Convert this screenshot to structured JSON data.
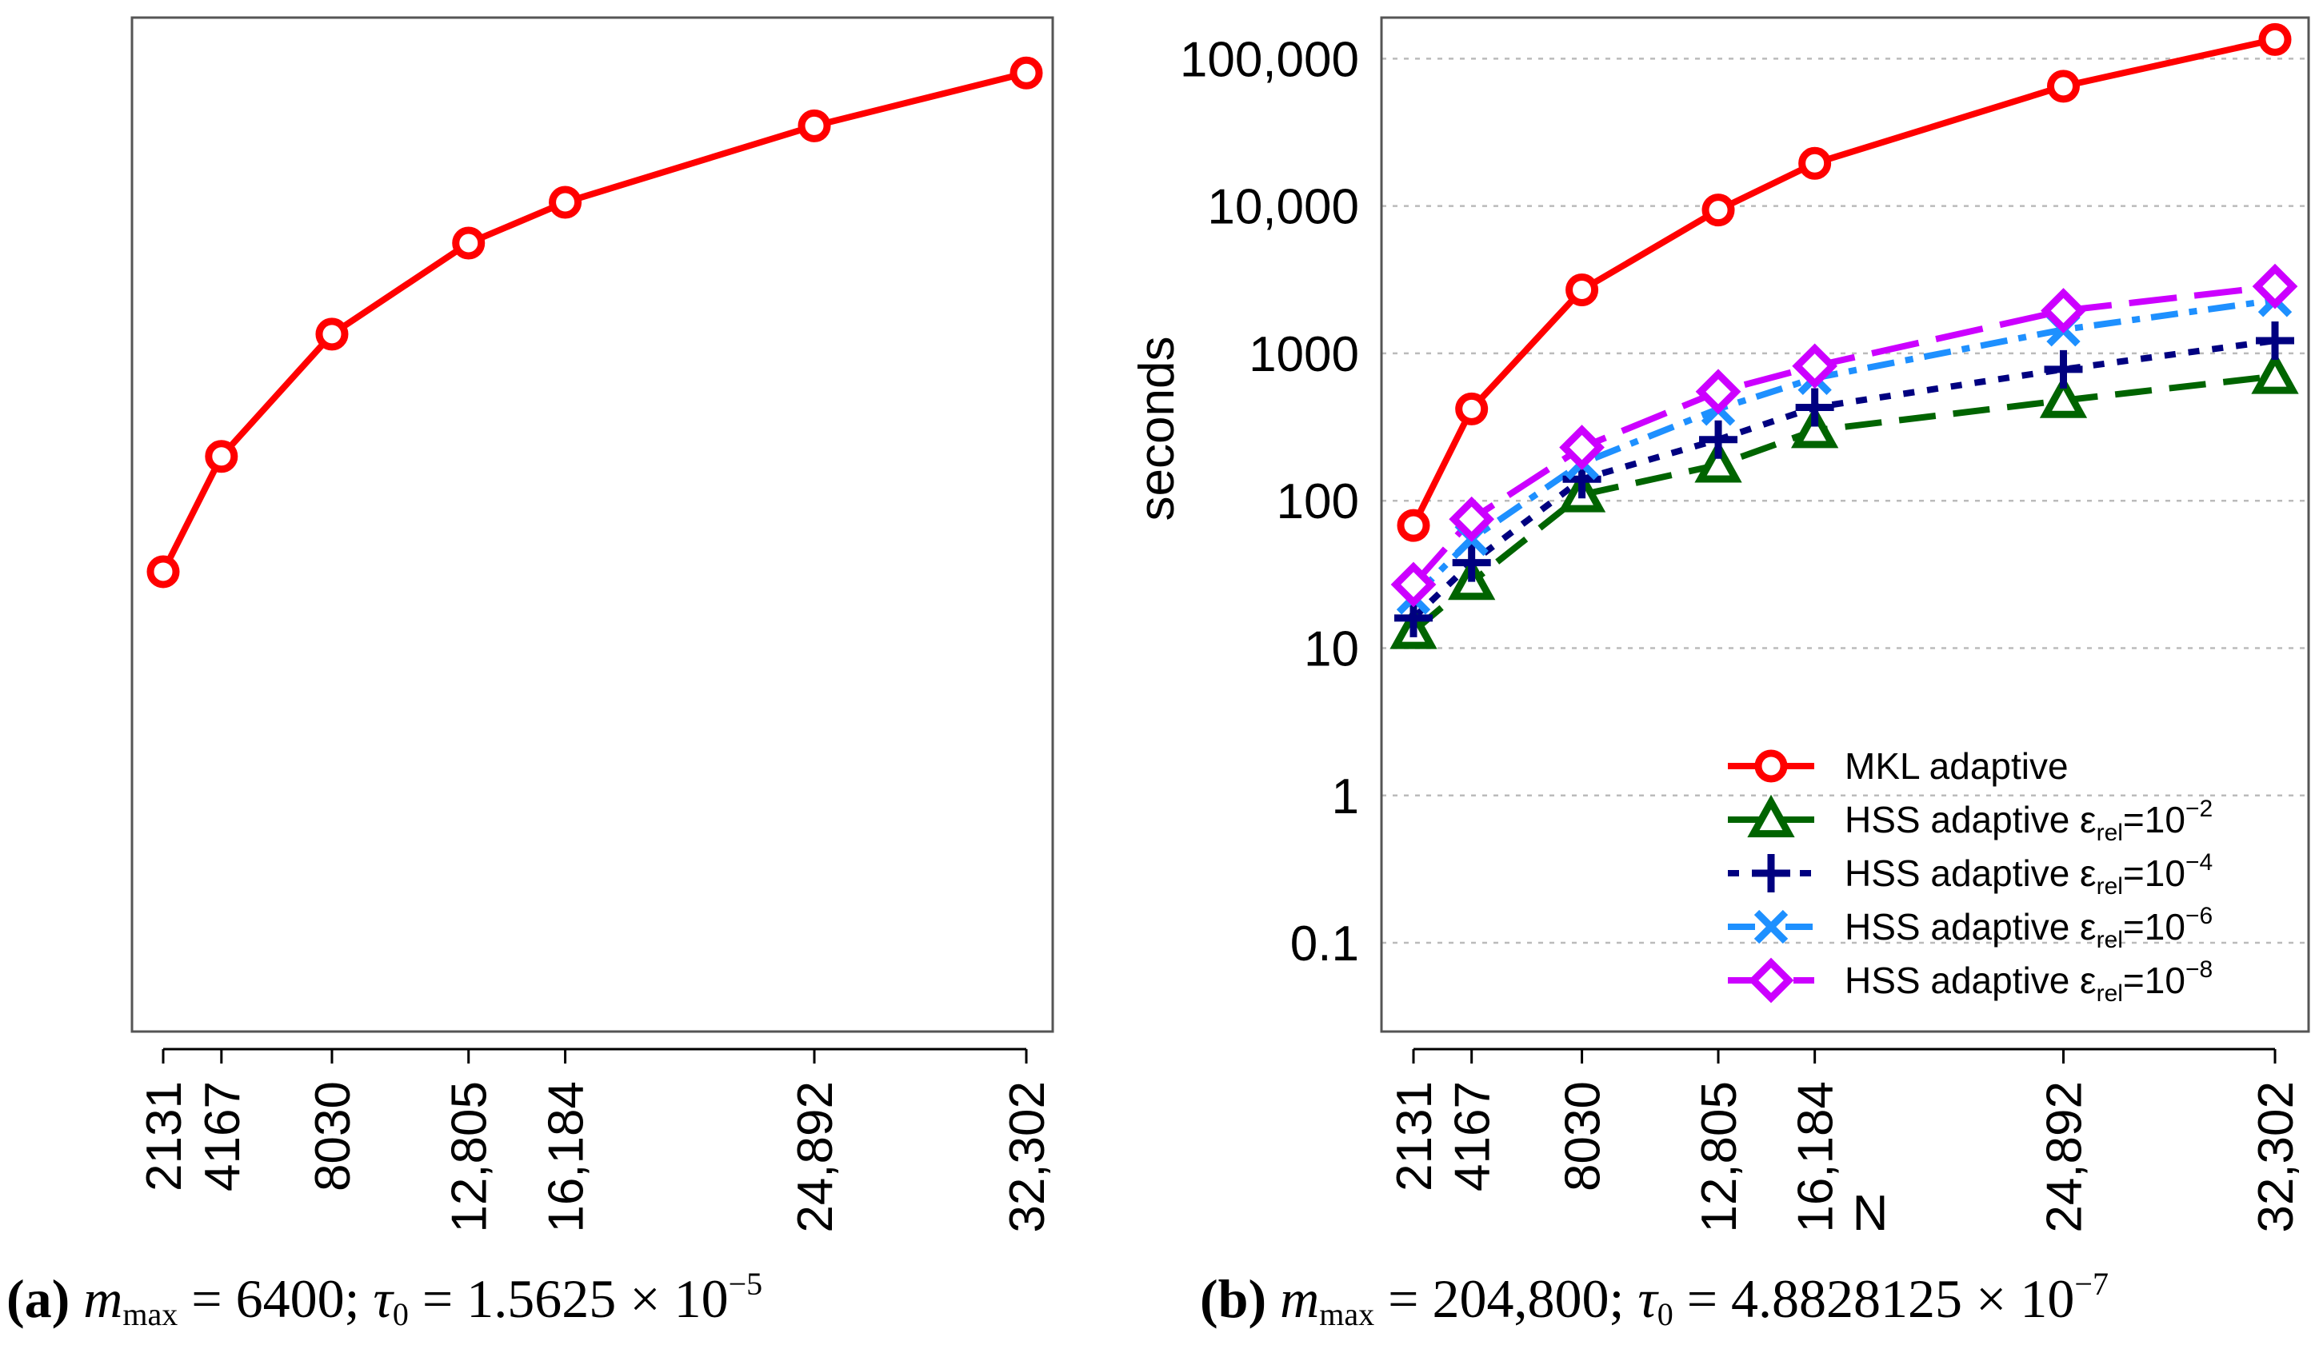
{
  "colors": {
    "mkl": "#ff0000",
    "hss2": "#006400",
    "hss4": "#000080",
    "hss6": "#1e90ff",
    "hss8": "#cc00ff",
    "frame": "#555555",
    "grid": "#bbbbbb"
  },
  "chart_data": [
    {
      "type": "line",
      "panel": "a",
      "xscale": "linear",
      "yscale": "log",
      "x": [
        2131,
        4167,
        8030,
        12805,
        16184,
        24892,
        32302
      ],
      "x_tick_labels": [
        "2131",
        "4167",
        "8030",
        "12,805",
        "16,184",
        "24,892",
        "32,302"
      ],
      "ylim": [
        0.025,
        190000
      ],
      "series": [
        {
          "name": "MKL adaptive",
          "marker": "circle",
          "color": "mkl",
          "values": [
            33,
            200,
            1350,
            5600,
            10600,
            35000,
            80000
          ]
        }
      ],
      "caption": {
        "letter": "(a)",
        "m_symbol": "m",
        "m_sub": "max",
        "m_value": " = 6400; ",
        "tau_symbol": "τ",
        "tau_sub": "0",
        "tau_value": " = 1.5625 × 10",
        "tau_exp": "−5"
      }
    },
    {
      "type": "line",
      "panel": "b",
      "xscale": "linear",
      "yscale": "log",
      "x": [
        2131,
        4167,
        8030,
        12805,
        16184,
        24892,
        32302
      ],
      "x_tick_labels": [
        "2131",
        "4167",
        "8030",
        "12,805",
        "16,184",
        "24,892",
        "32,302"
      ],
      "xlabel": "N",
      "ylabel": "seconds",
      "ylim": [
        0.025,
        190000
      ],
      "y_ticks": [
        0.1,
        1,
        10,
        100,
        1000,
        10000,
        100000
      ],
      "y_tick_labels": [
        "0.1",
        "1",
        "10",
        "100",
        "1000",
        "10,000",
        "100,000"
      ],
      "grid": "horizontal dotted",
      "legend_position": "bottom-right",
      "series": [
        {
          "name": "MKL adaptive",
          "marker": "circle",
          "color": "mkl",
          "line": "solid",
          "values": [
            68,
            420,
            2700,
            9400,
            19500,
            65000,
            135000
          ]
        },
        {
          "name": "HSS adaptive ε",
          "sub": "rel",
          "eq": "=10",
          "exp": "−2",
          "marker": "triangle",
          "color": "hss2",
          "line": "dashed",
          "values": [
            13,
            28,
            110,
            175,
            300,
            480,
            700
          ]
        },
        {
          "name": "HSS adaptive ε",
          "sub": "rel",
          "eq": "=10",
          "exp": "−4",
          "marker": "plus",
          "color": "hss4",
          "line": "dotted",
          "values": [
            16,
            38,
            140,
            260,
            430,
            780,
            1220
          ]
        },
        {
          "name": "HSS adaptive ε",
          "sub": "rel",
          "eq": "=10",
          "exp": "−6",
          "marker": "cross",
          "color": "hss6",
          "line": "dashdot",
          "values": [
            22,
            55,
            180,
            420,
            680,
            1450,
            2300
          ]
        },
        {
          "name": "HSS adaptive ε",
          "sub": "rel",
          "eq": "=10",
          "exp": "−8",
          "marker": "diamond",
          "color": "hss8",
          "line": "longdash",
          "values": [
            27,
            75,
            230,
            550,
            820,
            1950,
            2850
          ]
        }
      ],
      "caption": {
        "letter": "(b)",
        "m_symbol": "m",
        "m_sub": "max",
        "m_value": " = 204,800; ",
        "tau_symbol": "τ",
        "tau_sub": "0",
        "tau_value": " = 4.8828125 × 10",
        "tau_exp": "−7"
      }
    }
  ]
}
